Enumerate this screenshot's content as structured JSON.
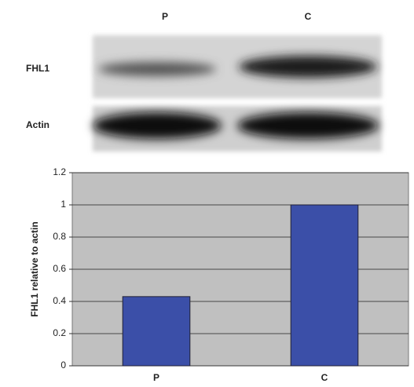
{
  "blot": {
    "lanes": [
      "P",
      "C"
    ],
    "rows": [
      "FHL1",
      "Actin"
    ]
  },
  "chart_data": {
    "type": "bar",
    "ylabel": "FHL1 relative to actin",
    "categories": [
      "P",
      "C"
    ],
    "values": [
      0.43,
      1
    ],
    "color": "#3b4fa8",
    "ylim": [
      0,
      1.2
    ],
    "yticks": [
      0,
      0.2,
      0.4,
      0.6,
      0.8,
      1,
      1.2
    ],
    "grid": true
  }
}
